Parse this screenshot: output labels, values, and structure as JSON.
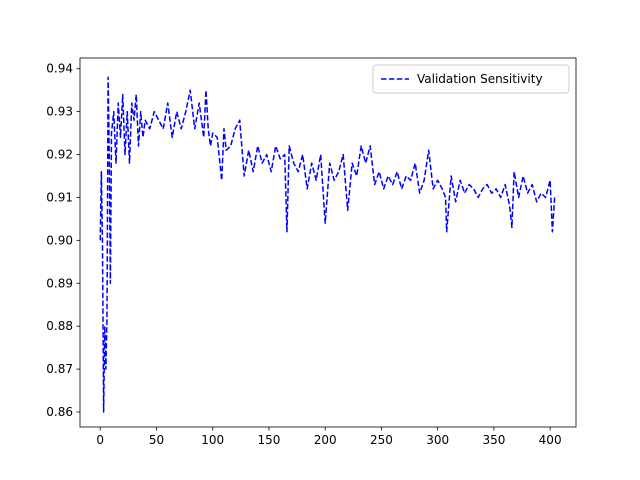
{
  "chart_data": {
    "type": "line",
    "title": "",
    "xlabel": "",
    "ylabel": "",
    "xlim": [
      -18,
      423
    ],
    "ylim": [
      0.8565,
      0.9425
    ],
    "x_ticks": [
      0,
      50,
      100,
      150,
      200,
      250,
      300,
      350,
      400
    ],
    "y_ticks": [
      0.86,
      0.87,
      0.88,
      0.89,
      0.9,
      0.91,
      0.92,
      0.93,
      0.94
    ],
    "y_tick_labels": [
      "0.86",
      "0.87",
      "0.88",
      "0.89",
      "0.90",
      "0.91",
      "0.92",
      "0.93",
      "0.94"
    ],
    "grid": false,
    "legend": "top-right",
    "series": [
      {
        "name": "Validation Sensitivity",
        "color": "#0000ff",
        "style": "dashed",
        "x": [
          0,
          1,
          2,
          3,
          4,
          5,
          6,
          7,
          8,
          9,
          10,
          12,
          14,
          16,
          18,
          20,
          22,
          24,
          26,
          28,
          30,
          32,
          34,
          36,
          38,
          40,
          44,
          48,
          52,
          56,
          60,
          64,
          68,
          72,
          76,
          80,
          84,
          88,
          92,
          94,
          96,
          98,
          100,
          104,
          108,
          110,
          112,
          116,
          120,
          124,
          128,
          132,
          136,
          140,
          144,
          148,
          152,
          156,
          160,
          164,
          166,
          168,
          172,
          176,
          180,
          184,
          188,
          192,
          196,
          200,
          204,
          208,
          212,
          216,
          220,
          224,
          228,
          232,
          236,
          240,
          244,
          248,
          252,
          256,
          260,
          264,
          268,
          272,
          276,
          280,
          284,
          288,
          292,
          296,
          300,
          304,
          307,
          308,
          312,
          316,
          320,
          324,
          328,
          332,
          336,
          340,
          344,
          348,
          352,
          356,
          360,
          364,
          366,
          368,
          372,
          376,
          380,
          384,
          388,
          392,
          396,
          400,
          402,
          404
        ],
        "values": [
          0.9,
          0.916,
          0.899,
          0.86,
          0.88,
          0.87,
          0.882,
          0.938,
          0.92,
          0.89,
          0.925,
          0.93,
          0.918,
          0.932,
          0.924,
          0.934,
          0.92,
          0.93,
          0.918,
          0.932,
          0.928,
          0.934,
          0.922,
          0.93,
          0.924,
          0.928,
          0.926,
          0.93,
          0.928,
          0.926,
          0.932,
          0.924,
          0.93,
          0.926,
          0.93,
          0.935,
          0.926,
          0.932,
          0.924,
          0.935,
          0.926,
          0.922,
          0.925,
          0.924,
          0.914,
          0.926,
          0.921,
          0.922,
          0.926,
          0.928,
          0.915,
          0.921,
          0.916,
          0.922,
          0.918,
          0.92,
          0.916,
          0.922,
          0.919,
          0.92,
          0.902,
          0.922,
          0.918,
          0.916,
          0.92,
          0.912,
          0.918,
          0.914,
          0.92,
          0.904,
          0.918,
          0.914,
          0.916,
          0.92,
          0.907,
          0.918,
          0.915,
          0.922,
          0.918,
          0.922,
          0.913,
          0.916,
          0.912,
          0.915,
          0.913,
          0.916,
          0.912,
          0.915,
          0.914,
          0.918,
          0.911,
          0.914,
          0.921,
          0.912,
          0.914,
          0.912,
          0.91,
          0.902,
          0.915,
          0.909,
          0.914,
          0.911,
          0.913,
          0.912,
          0.91,
          0.912,
          0.913,
          0.911,
          0.912,
          0.91,
          0.913,
          0.908,
          0.903,
          0.916,
          0.91,
          0.915,
          0.911,
          0.913,
          0.909,
          0.911,
          0.91,
          0.914,
          0.902,
          0.91
        ]
      }
    ]
  }
}
